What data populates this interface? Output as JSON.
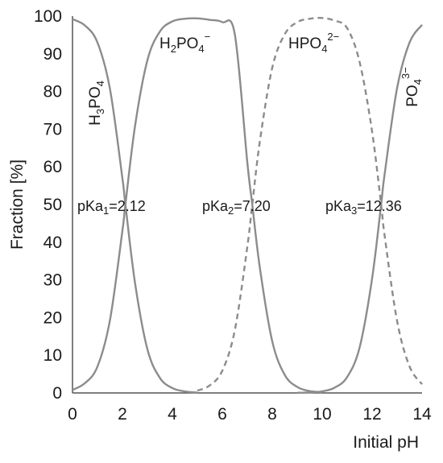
{
  "chart_data": {
    "type": "line",
    "xlabel": "Initial pH",
    "ylabel": "Fraction [%]",
    "xlim": [
      0,
      14
    ],
    "ylim": [
      0,
      100
    ],
    "xticks": [
      "0",
      "2",
      "4",
      "6",
      "8",
      "10",
      "12",
      "14"
    ],
    "yticks": [
      "0",
      "10",
      "20",
      "30",
      "40",
      "50",
      "60",
      "70",
      "80",
      "90",
      "100"
    ],
    "grid": false,
    "pKa": [
      2.12,
      7.2,
      12.36
    ],
    "species_labels": {
      "h3po4": {
        "base": "H",
        "sub1": "3",
        "mid": "PO",
        "sub2": "4",
        "sup": ""
      },
      "h2po4": {
        "base": "H",
        "sub1": "2",
        "mid": "PO",
        "sub2": "4",
        "sup": "−"
      },
      "hpo4": {
        "base": "",
        "sub1": "",
        "mid": "HPO",
        "sub2": "4",
        "sup": "2−"
      },
      "po4": {
        "base": "",
        "sub1": "",
        "mid": "PO",
        "sub2": "4",
        "sup": "3−"
      }
    },
    "pka_labels": [
      {
        "prefix": "pKa",
        "sub": "1",
        "value": "=2.12"
      },
      {
        "prefix": "pKa",
        "sub": "2",
        "value": "=7.20"
      },
      {
        "prefix": "pKa",
        "sub": "3",
        "value": "=12.36"
      }
    ],
    "series": [
      {
        "species": "H3PO4",
        "style": "solid",
        "color": "#8c8c8c",
        "x": [
          0,
          0.5,
          1,
          1.5,
          2,
          2.12,
          2.5,
          3,
          3.5,
          4,
          4.5,
          5
        ],
        "y": [
          99.2,
          97.5,
          93.0,
          80.7,
          56.9,
          50.0,
          29.4,
          11.6,
          4.0,
          1.3,
          0.4,
          0.1
        ]
      },
      {
        "species": "H2PO4−",
        "style": "solid",
        "color": "#8c8c8c",
        "x": [
          0,
          0.5,
          1,
          1.5,
          2,
          2.12,
          2.5,
          3,
          3.5,
          4,
          4.5,
          5,
          5.5,
          6,
          6.5,
          7,
          7.2,
          7.5,
          8,
          8.5,
          9,
          9.5,
          10
        ],
        "y": [
          0.8,
          2.6,
          7.0,
          19.3,
          43.1,
          50.0,
          70.6,
          88.3,
          95.9,
          98.6,
          99.3,
          99.4,
          99.0,
          98.4,
          95.2,
          61.3,
          50.0,
          33.4,
          13.7,
          4.8,
          1.6,
          0.5,
          0.2
        ]
      },
      {
        "species": "HPO4 2−",
        "style": "dashed",
        "color": "#8c8c8c",
        "x": [
          5,
          5.5,
          6,
          6.5,
          7,
          7.2,
          7.5,
          8,
          8.5,
          9,
          9.5,
          10,
          10.5,
          11,
          11.5,
          12,
          12.36,
          12.5,
          13,
          13.5,
          14
        ],
        "y": [
          0.6,
          2.0,
          5.9,
          16.6,
          38.7,
          50.0,
          66.6,
          86.3,
          95.2,
          98.4,
          99.3,
          99.5,
          98.8,
          96.8,
          87.8,
          69.3,
          50.0,
          41.8,
          19.1,
          7.0,
          2.3
        ]
      },
      {
        "species": "PO4 3−",
        "style": "solid",
        "color": "#8c8c8c",
        "x": [
          9,
          9.5,
          10,
          10.5,
          11,
          11.5,
          12,
          12.36,
          12.5,
          13,
          13.5,
          14
        ],
        "y": [
          0.04,
          0.14,
          0.43,
          1.4,
          4.2,
          12.1,
          30.4,
          50.0,
          58.0,
          80.9,
          93.0,
          97.7
        ]
      }
    ]
  }
}
